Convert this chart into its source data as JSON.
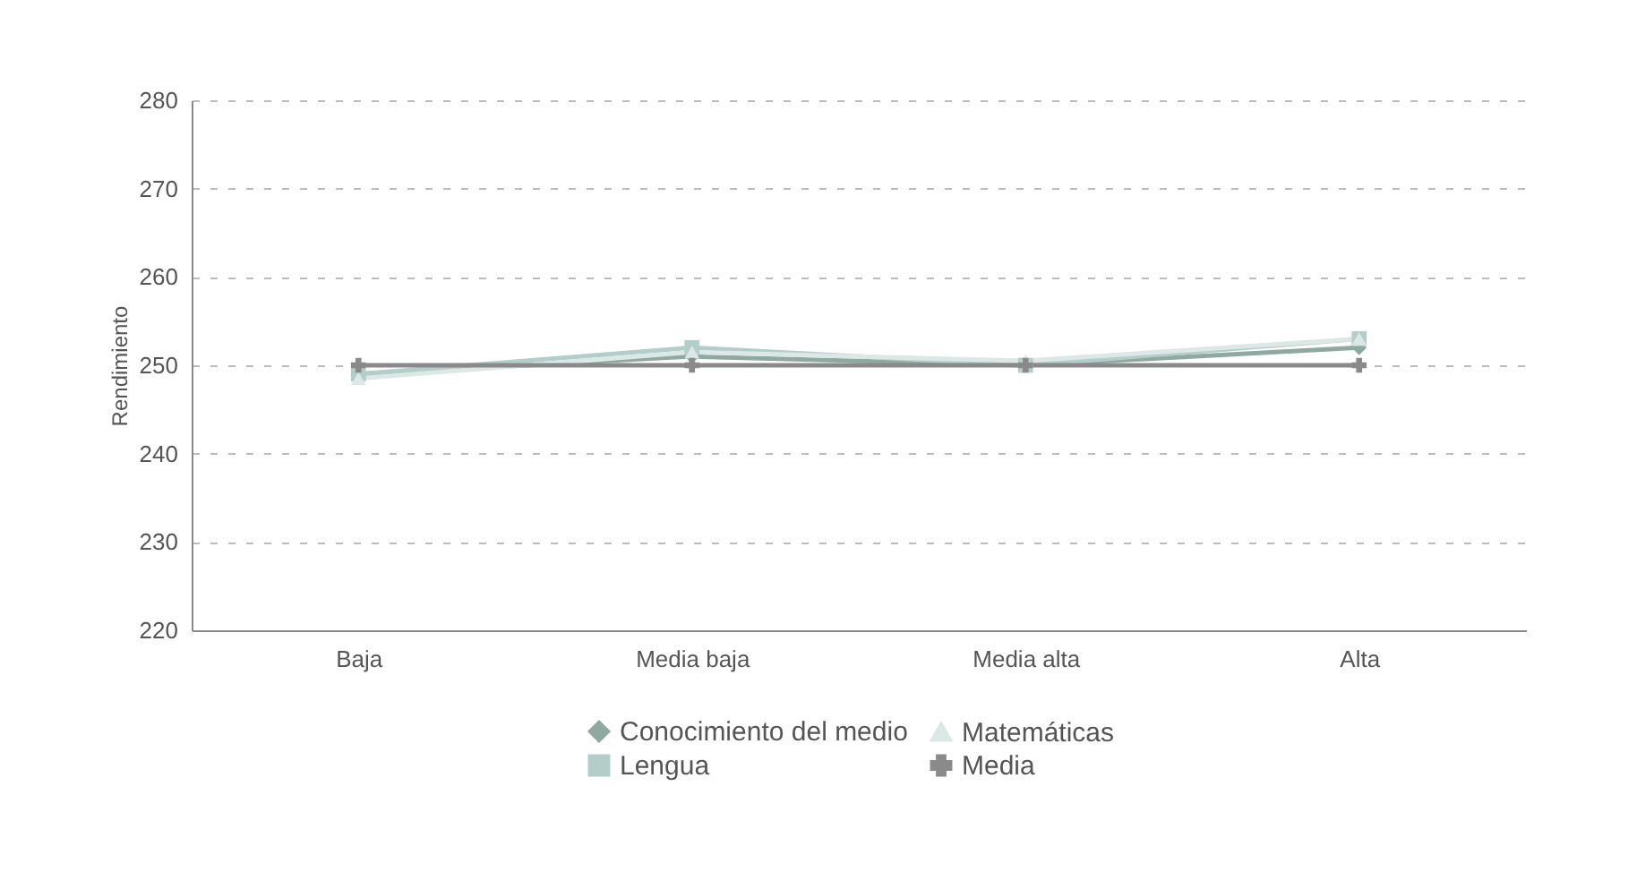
{
  "chart_data": {
    "type": "line",
    "ylabel": "Rendimiento",
    "categories": [
      "Baja",
      "Media baja",
      "Media alta",
      "Alta"
    ],
    "series": [
      {
        "name": "Conocimiento del medio",
        "color": "#8fa9a1",
        "marker": "diamond",
        "values": [
          249,
          251,
          250,
          252
        ]
      },
      {
        "name": "Lengua",
        "color": "#b3cec8",
        "marker": "square",
        "values": [
          249,
          252,
          250,
          253
        ]
      },
      {
        "name": "Matemáticas",
        "color": "#dce8e5",
        "marker": "triangle",
        "values": [
          248.5,
          251.5,
          250.5,
          253
        ]
      },
      {
        "name": "Media",
        "color": "#8a8a8a",
        "marker": "cross",
        "values": [
          250,
          250,
          250,
          250
        ]
      }
    ],
    "ylim": [
      220,
      280
    ],
    "yticks": [
      220,
      230,
      240,
      250,
      260,
      270,
      280
    ],
    "grid": "y",
    "legend": "bottom",
    "line_style": "solid"
  }
}
